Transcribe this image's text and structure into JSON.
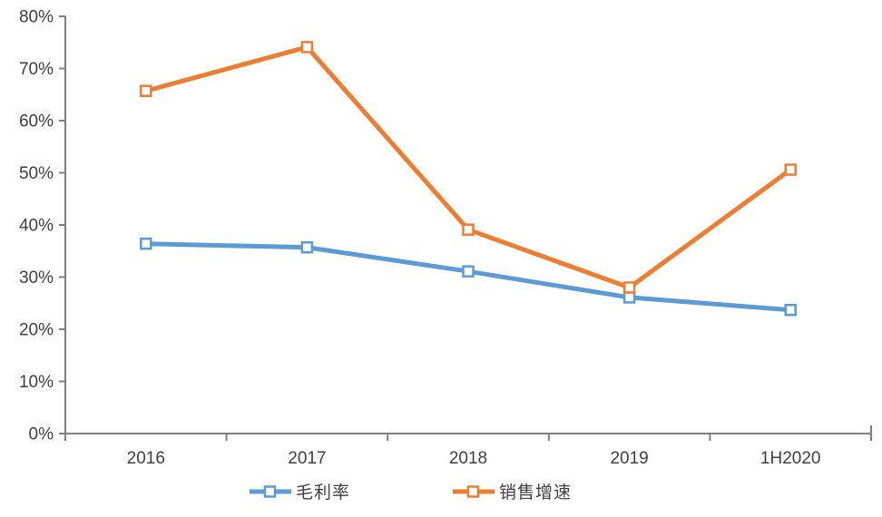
{
  "chart_data": {
    "type": "line",
    "categories": [
      "2016",
      "2017",
      "2018",
      "2019",
      "1H2020"
    ],
    "series": [
      {
        "name": "毛利率",
        "color": "#5B9BD5",
        "marker": "square-open",
        "values": [
          36.4,
          35.7,
          31.1,
          26.1,
          23.7
        ]
      },
      {
        "name": "销售增速",
        "color": "#ED7D31",
        "marker": "square-open",
        "values": [
          65.7,
          74.1,
          39.1,
          28.0,
          50.6
        ]
      }
    ],
    "title": "",
    "xlabel": "",
    "ylabel": "",
    "ylim": [
      0,
      80
    ],
    "ytick_step": 10,
    "ytick_suffix": "%",
    "grid": false,
    "legend_position": "bottom",
    "axis_color": "#808080",
    "label_color": "#404040"
  }
}
